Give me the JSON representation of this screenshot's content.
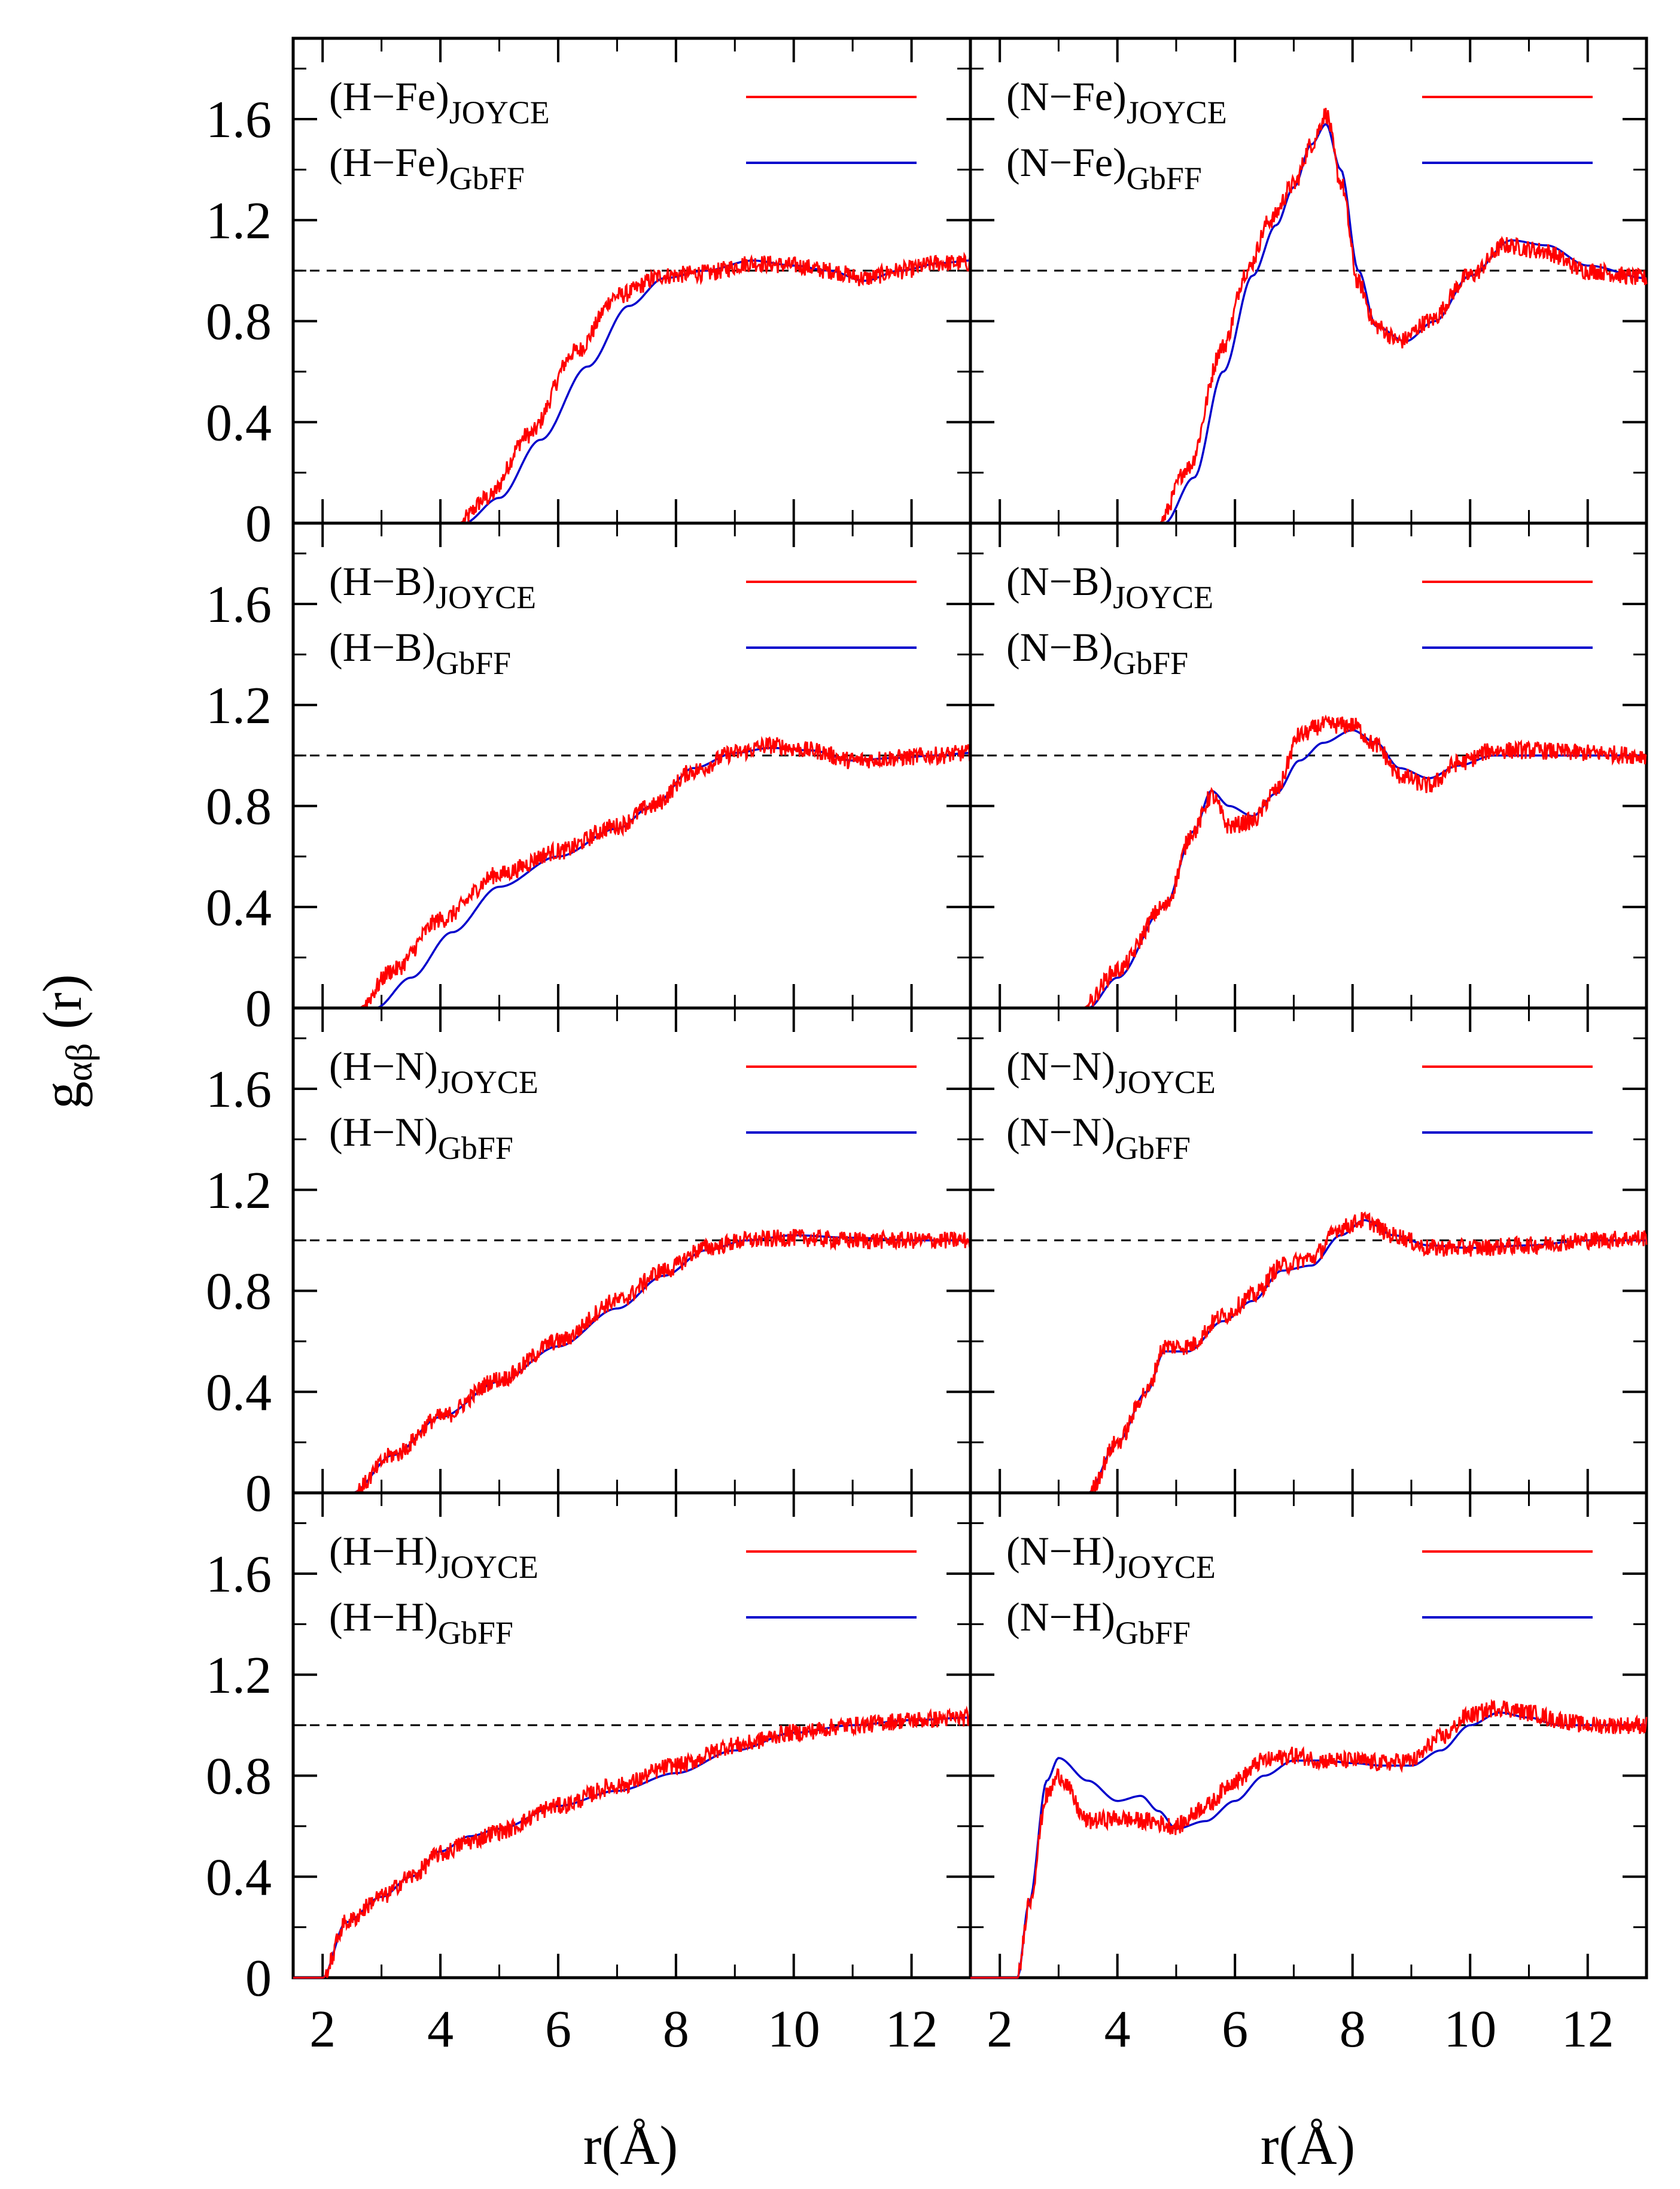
{
  "figure": {
    "ylabel_main": "g",
    "ylabel_sub": "αβ",
    "ylabel_suffix": " (r)",
    "xlabel": "r(Å)"
  },
  "chart_data": {
    "type": "line",
    "layout": "4 rows x 2 columns, shared axes",
    "xlim": [
      1.5,
      13.0
    ],
    "ylim": [
      0,
      1.92
    ],
    "xticks": [
      2,
      4,
      6,
      8,
      10,
      12
    ],
    "xtick_labels": [
      "2",
      "4",
      "6",
      "8",
      "10",
      "12"
    ],
    "yticks": [
      0,
      0.4,
      0.8,
      1.2,
      1.6
    ],
    "ytick_labels": [
      "0",
      "0.4",
      "0.8",
      "1.2",
      "1.6"
    ],
    "reference_line_y": 1.0,
    "xlabel": "r(Å)",
    "ylabel": "gαβ (r)",
    "series_colors": {
      "JOYCE": "#ff0000",
      "GbFF": "#0000cc"
    },
    "panels": [
      {
        "row": 0,
        "col": 0,
        "pair": "(H−Fe)",
        "series": [
          {
            "name": "JOYCE",
            "label_main": "(H−Fe)",
            "label_sub": "JOYCE",
            "noisy": true,
            "x": [
              1.5,
              4.3,
              4.8,
              5.5,
              6.3,
              7.0,
              7.8,
              8.5,
              9.3,
              10.0,
              10.6,
              11.2,
              11.8,
              12.5,
              13.0
            ],
            "y": [
              0,
              0,
              0.1,
              0.35,
              0.68,
              0.9,
              0.98,
              0.99,
              1.03,
              1.02,
              1.0,
              0.97,
              1.0,
              1.03,
              1.03
            ]
          },
          {
            "name": "GbFF",
            "label_main": "(H−Fe)",
            "label_sub": "GbFF",
            "noisy": false,
            "x": [
              1.5,
              4.4,
              5.0,
              5.7,
              6.5,
              7.2,
              7.8,
              8.5,
              9.3,
              10.0,
              10.6,
              11.2,
              11.8,
              12.5,
              13.0
            ],
            "y": [
              0,
              0,
              0.1,
              0.33,
              0.62,
              0.86,
              0.97,
              1.0,
              1.04,
              1.02,
              1.0,
              0.96,
              1.0,
              1.03,
              1.04
            ]
          }
        ]
      },
      {
        "row": 0,
        "col": 1,
        "pair": "(N−Fe)",
        "series": [
          {
            "name": "JOYCE",
            "label_main": "(N−Fe)",
            "label_sub": "JOYCE",
            "noisy": true,
            "x": [
              1.5,
              4.7,
              5.2,
              5.8,
              6.2,
              6.6,
              7.0,
              7.3,
              7.55,
              7.8,
              8.1,
              8.4,
              8.8,
              9.3,
              10.0,
              10.6,
              11.2,
              12.0,
              13.0
            ],
            "y": [
              0,
              0,
              0.22,
              0.7,
              1.0,
              1.2,
              1.34,
              1.5,
              1.62,
              1.35,
              0.95,
              0.78,
              0.72,
              0.8,
              0.98,
              1.1,
              1.08,
              1.0,
              0.97
            ]
          },
          {
            "name": "GbFF",
            "label_main": "(N−Fe)",
            "label_sub": "GbFF",
            "noisy": false,
            "x": [
              1.5,
              4.8,
              5.3,
              5.8,
              6.3,
              6.7,
              7.0,
              7.3,
              7.55,
              7.8,
              8.1,
              8.4,
              8.9,
              9.4,
              10.0,
              10.7,
              11.3,
              12.0,
              13.0
            ],
            "y": [
              0,
              0,
              0.18,
              0.6,
              0.98,
              1.18,
              1.33,
              1.5,
              1.58,
              1.4,
              1.0,
              0.78,
              0.72,
              0.8,
              0.98,
              1.12,
              1.1,
              1.02,
              0.97
            ]
          }
        ]
      },
      {
        "row": 1,
        "col": 0,
        "pair": "(H−B)",
        "series": [
          {
            "name": "JOYCE",
            "label_main": "(H−B)",
            "label_sub": "JOYCE",
            "noisy": true,
            "x": [
              1.5,
              2.6,
              3.2,
              4.0,
              5.0,
              6.0,
              7.0,
              7.6,
              8.3,
              9.0,
              9.6,
              10.3,
              11.0,
              11.7,
              12.4,
              13.0
            ],
            "y": [
              0,
              0,
              0.15,
              0.35,
              0.53,
              0.62,
              0.72,
              0.8,
              0.94,
              1.01,
              1.04,
              1.02,
              0.98,
              0.99,
              1.0,
              1.01
            ]
          },
          {
            "name": "GbFF",
            "label_main": "(H−B)",
            "label_sub": "GbFF",
            "noisy": false,
            "x": [
              1.5,
              2.9,
              3.5,
              4.2,
              5.0,
              6.0,
              7.0,
              7.6,
              8.3,
              9.0,
              9.6,
              10.3,
              11.0,
              11.7,
              12.4,
              13.0
            ],
            "y": [
              0,
              0,
              0.12,
              0.3,
              0.48,
              0.6,
              0.71,
              0.8,
              0.95,
              1.01,
              1.03,
              1.02,
              0.98,
              0.99,
              1.0,
              1.01
            ]
          }
        ]
      },
      {
        "row": 1,
        "col": 1,
        "pair": "(N−B)",
        "series": [
          {
            "name": "JOYCE",
            "label_main": "(N−B)",
            "label_sub": "JOYCE",
            "noisy": true,
            "x": [
              1.5,
              3.4,
              4.0,
              4.8,
              5.3,
              5.6,
              5.9,
              6.3,
              6.7,
              7.1,
              7.5,
              8.0,
              8.4,
              8.8,
              9.3,
              9.8,
              10.4,
              11.0,
              12.0,
              13.0
            ],
            "y": [
              0,
              0,
              0.15,
              0.4,
              0.7,
              0.84,
              0.72,
              0.74,
              0.86,
              1.08,
              1.12,
              1.12,
              1.04,
              0.92,
              0.88,
              0.97,
              1.02,
              1.02,
              1.01,
              1.0
            ]
          },
          {
            "name": "GbFF",
            "label_main": "(N−B)",
            "label_sub": "GbFF",
            "noisy": false,
            "x": [
              1.5,
              3.5,
              4.0,
              4.8,
              5.3,
              5.6,
              5.9,
              6.3,
              6.7,
              7.1,
              7.5,
              8.0,
              8.4,
              8.8,
              9.3,
              9.8,
              10.4,
              11.0,
              12.0,
              13.0
            ],
            "y": [
              0,
              0,
              0.12,
              0.4,
              0.7,
              0.86,
              0.8,
              0.76,
              0.85,
              0.98,
              1.05,
              1.1,
              1.05,
              0.95,
              0.91,
              0.96,
              1.0,
              1.0,
              1.0,
              1.0
            ]
          }
        ]
      },
      {
        "row": 2,
        "col": 0,
        "pair": "(H−N)",
        "series": [
          {
            "name": "JOYCE",
            "label_main": "(H−N)",
            "label_sub": "JOYCE",
            "noisy": true,
            "x": [
              1.5,
              2.5,
              3.2,
              4.0,
              5.0,
              6.0,
              7.0,
              7.8,
              8.5,
              9.2,
              10.0,
              11.0,
              12.0,
              13.0
            ],
            "y": [
              0,
              0,
              0.15,
              0.3,
              0.45,
              0.6,
              0.76,
              0.88,
              0.97,
              1.0,
              1.01,
              1.0,
              1.0,
              1.0
            ]
          },
          {
            "name": "GbFF",
            "label_main": "(H−N)",
            "label_sub": "GbFF",
            "noisy": false,
            "x": [
              1.5,
              2.5,
              3.2,
              4.0,
              5.0,
              6.0,
              7.0,
              7.8,
              8.5,
              9.2,
              10.0,
              11.0,
              12.0,
              13.0
            ],
            "y": [
              0,
              0,
              0.15,
              0.3,
              0.44,
              0.58,
              0.73,
              0.86,
              0.96,
              1.0,
              1.02,
              1.01,
              1.0,
              1.0
            ]
          }
        ]
      },
      {
        "row": 2,
        "col": 1,
        "pair": "(N−N)",
        "series": [
          {
            "name": "JOYCE",
            "label_main": "(N−N)",
            "label_sub": "JOYCE",
            "noisy": true,
            "x": [
              1.5,
              3.5,
              4.0,
              4.5,
              4.8,
              5.2,
              5.8,
              6.3,
              6.8,
              7.3,
              7.8,
              8.2,
              8.7,
              9.3,
              10.0,
              11.0,
              12.0,
              13.0
            ],
            "y": [
              0,
              0,
              0.2,
              0.4,
              0.58,
              0.58,
              0.7,
              0.78,
              0.9,
              0.93,
              1.05,
              1.08,
              1.02,
              0.97,
              0.97,
              0.98,
              1.0,
              1.01
            ]
          },
          {
            "name": "GbFF",
            "label_main": "(N−N)",
            "label_sub": "GbFF",
            "noisy": false,
            "x": [
              1.5,
              3.5,
              4.0,
              4.5,
              4.8,
              5.2,
              5.8,
              6.3,
              6.8,
              7.3,
              7.8,
              8.2,
              8.7,
              9.3,
              10.0,
              11.0,
              12.0,
              13.0
            ],
            "y": [
              0,
              0,
              0.2,
              0.4,
              0.56,
              0.56,
              0.68,
              0.76,
              0.88,
              0.9,
              1.02,
              1.08,
              1.02,
              0.98,
              0.97,
              0.98,
              1.0,
              1.0
            ]
          }
        ]
      },
      {
        "row": 3,
        "col": 0,
        "pair": "(H−H)",
        "series": [
          {
            "name": "JOYCE",
            "label_main": "(H−H)",
            "label_sub": "JOYCE",
            "noisy": true,
            "x": [
              1.5,
              2.0,
              2.4,
              3.0,
              3.5,
              4.0,
              4.5,
              5.0,
              6.0,
              7.0,
              8.0,
              9.0,
              10.0,
              11.0,
              12.0,
              13.0
            ],
            "y": [
              0,
              0,
              0.22,
              0.32,
              0.4,
              0.49,
              0.54,
              0.58,
              0.68,
              0.76,
              0.84,
              0.92,
              0.97,
              1.0,
              1.02,
              1.03
            ]
          },
          {
            "name": "GbFF",
            "label_main": "(H−H)",
            "label_sub": "GbFF",
            "noisy": false,
            "x": [
              1.5,
              2.0,
              2.4,
              3.0,
              3.5,
              4.0,
              4.5,
              5.0,
              6.0,
              7.0,
              8.0,
              9.0,
              10.0,
              11.0,
              12.0,
              13.0
            ],
            "y": [
              0,
              0,
              0.22,
              0.32,
              0.4,
              0.5,
              0.56,
              0.59,
              0.68,
              0.74,
              0.81,
              0.9,
              0.97,
              1.0,
              1.02,
              1.03
            ]
          }
        ]
      },
      {
        "row": 3,
        "col": 1,
        "pair": "(N−H)",
        "series": [
          {
            "name": "JOYCE",
            "label_main": "(N−H)",
            "label_sub": "JOYCE",
            "noisy": true,
            "x": [
              1.5,
              2.3,
              2.5,
              2.8,
              3.0,
              3.5,
              4.0,
              4.5,
              5.0,
              5.5,
              6.0,
              6.5,
              7.0,
              7.5,
              8.0,
              8.5,
              9.0,
              9.5,
              10.0,
              10.5,
              11.0,
              11.5,
              12.0,
              13.0
            ],
            "y": [
              0,
              0,
              0.3,
              0.72,
              0.8,
              0.62,
              0.63,
              0.62,
              0.6,
              0.68,
              0.78,
              0.86,
              0.88,
              0.86,
              0.86,
              0.85,
              0.86,
              0.95,
              1.04,
              1.07,
              1.05,
              1.02,
              1.0,
              1.0
            ]
          },
          {
            "name": "GbFF",
            "label_main": "(N−H)",
            "label_sub": "GbFF",
            "noisy": false,
            "x": [
              1.5,
              2.3,
              2.5,
              2.8,
              3.0,
              3.5,
              4.0,
              4.4,
              4.7,
              5.0,
              5.5,
              6.0,
              6.5,
              7.0,
              7.5,
              8.0,
              8.5,
              9.0,
              9.5,
              10.0,
              10.5,
              11.0,
              11.5,
              12.0,
              13.0
            ],
            "y": [
              0,
              0,
              0.3,
              0.78,
              0.87,
              0.78,
              0.7,
              0.72,
              0.66,
              0.59,
              0.62,
              0.7,
              0.8,
              0.86,
              0.86,
              0.85,
              0.84,
              0.84,
              0.9,
              1.0,
              1.05,
              1.03,
              1.0,
              1.0,
              1.0
            ]
          }
        ]
      }
    ]
  }
}
